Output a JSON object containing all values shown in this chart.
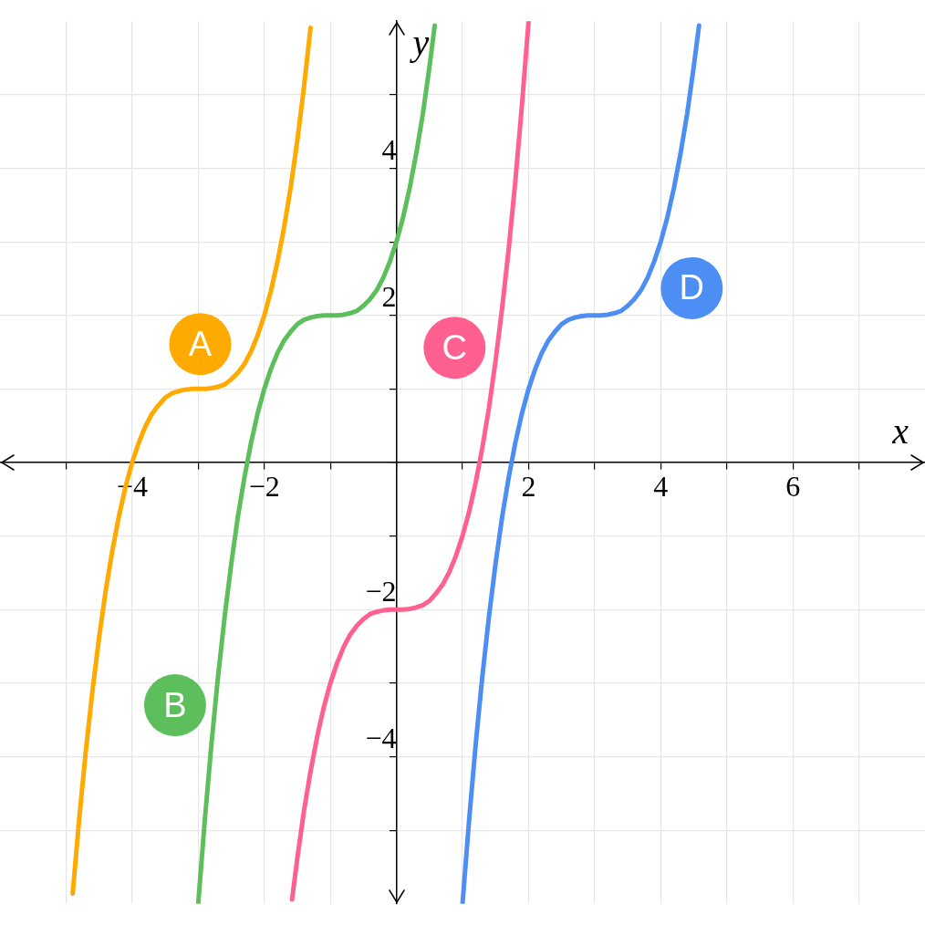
{
  "chart_data": {
    "type": "line",
    "xlabel": "x",
    "ylabel": "y",
    "xlim": [
      -6,
      8
    ],
    "ylim": [
      -6,
      6
    ],
    "xticks": [
      {
        "value": -5,
        "label": null
      },
      {
        "value": -4,
        "label": "−4"
      },
      {
        "value": -3,
        "label": null
      },
      {
        "value": -2,
        "label": "−2"
      },
      {
        "value": -1,
        "label": null
      },
      {
        "value": 0,
        "label": null
      },
      {
        "value": 1,
        "label": null
      },
      2,
      {
        "value": 3,
        "label": null
      },
      4,
      {
        "value": 5,
        "label": null
      },
      6,
      {
        "value": 7,
        "label": null
      }
    ],
    "yticks": [
      {
        "value": -5,
        "label": null
      },
      {
        "value": -4,
        "label": "−4"
      },
      {
        "value": -3,
        "label": null
      },
      {
        "value": -2,
        "label": "−2"
      },
      {
        "value": -1,
        "label": null
      },
      {
        "value": 0,
        "label": null
      },
      {
        "value": 1,
        "label": null
      },
      2,
      {
        "value": 3,
        "label": null
      },
      4,
      {
        "value": 5,
        "label": null
      }
    ],
    "grid": true,
    "legend": false,
    "marker": "none",
    "line_style": "solid",
    "annotations": [
      "A",
      "B",
      "C",
      "D"
    ],
    "series": [
      {
        "color": "#ffaa00",
        "x": [
          -4.9,
          -4.8,
          -4.7,
          -4.6,
          -4.5,
          -4.4,
          -4.3,
          -4.2,
          -4.1,
          -4.0,
          -3.9,
          -3.8,
          -3.7,
          -3.6,
          -3.5,
          -3.4,
          -3.3,
          -3.2,
          -3.1,
          -3.0,
          -2.9,
          -2.8,
          -2.7,
          -2.6,
          -2.5,
          -2.4,
          -2.3,
          -2.2,
          -2.1,
          -2.0,
          -1.9,
          -1.8,
          -1.7,
          -1.6,
          -1.5,
          -1.4,
          -1.3
        ],
        "values": [
          -5.86,
          -4.83,
          -3.91,
          -3.1,
          -2.38,
          -1.74,
          -1.2,
          -0.73,
          -0.33,
          0,
          0.27,
          0.49,
          0.66,
          0.78,
          0.88,
          0.94,
          0.97,
          0.99,
          1.0,
          1,
          1.0,
          1.01,
          1.03,
          1.06,
          1.13,
          1.22,
          1.34,
          1.51,
          1.73,
          2,
          2.33,
          2.73,
          3.2,
          3.74,
          4.38,
          5.1,
          5.91
        ]
      },
      {
        "color": "#5cbf5c",
        "x": [
          -3.0,
          -2.9,
          -2.8,
          -2.7,
          -2.6,
          -2.5,
          -2.4,
          -2.3,
          -2.2,
          -2.1,
          -2.0,
          -1.9,
          -1.8,
          -1.7,
          -1.6,
          -1.5,
          -1.4,
          -1.3,
          -1.2,
          -1.1,
          -1.0,
          -0.9,
          -0.8,
          -0.7,
          -0.6,
          -0.5,
          -0.4,
          -0.3,
          -0.2,
          -0.1,
          0.0,
          0.1,
          0.2,
          0.3,
          0.4,
          0.5,
          0.58
        ],
        "values": [
          -6,
          -4.86,
          -3.83,
          -2.91,
          -2.1,
          -1.38,
          -0.74,
          -0.2,
          0.27,
          0.67,
          1,
          1.27,
          1.49,
          1.66,
          1.78,
          1.88,
          1.94,
          1.97,
          1.99,
          2.0,
          2,
          2.0,
          2.01,
          2.03,
          2.06,
          2.13,
          2.22,
          2.34,
          2.51,
          2.73,
          3,
          3.33,
          3.73,
          4.2,
          4.74,
          5.38,
          5.94
        ]
      },
      {
        "color": "#ff6090",
        "x": [
          -1.58,
          -1.5,
          -1.4,
          -1.3,
          -1.2,
          -1.1,
          -1.0,
          -0.9,
          -0.8,
          -0.7,
          -0.6,
          -0.5,
          -0.4,
          -0.3,
          -0.2,
          -0.1,
          0.0,
          0.1,
          0.2,
          0.3,
          0.4,
          0.5,
          0.6,
          0.7,
          0.8,
          0.9,
          1.0,
          1.1,
          1.2,
          1.3,
          1.4,
          1.5,
          1.6,
          1.7,
          1.8,
          1.9,
          2.0
        ],
        "values": [
          -5.94,
          -5.38,
          -4.74,
          -4.2,
          -3.73,
          -3.33,
          -3,
          -2.73,
          -2.51,
          -2.34,
          -2.22,
          -2.13,
          -2.06,
          -2.03,
          -2.01,
          -2.0,
          -2,
          -2.0,
          -1.99,
          -1.97,
          -1.94,
          -1.88,
          -1.78,
          -1.66,
          -1.49,
          -1.27,
          -1,
          -0.67,
          -0.27,
          0.2,
          0.74,
          1.38,
          2.1,
          2.91,
          3.83,
          4.86,
          6
        ]
      },
      {
        "color": "#4d8ef5",
        "x": [
          1.0,
          1.1,
          1.2,
          1.3,
          1.4,
          1.5,
          1.6,
          1.7,
          1.8,
          1.9,
          2.0,
          2.1,
          2.2,
          2.3,
          2.4,
          2.5,
          2.6,
          2.7,
          2.8,
          2.9,
          3.0,
          3.1,
          3.2,
          3.3,
          3.4,
          3.5,
          3.6,
          3.7,
          3.8,
          3.9,
          4.0,
          4.1,
          4.2,
          4.3,
          4.4,
          4.5,
          4.58
        ],
        "values": [
          -6,
          -4.86,
          -3.83,
          -2.91,
          -2.1,
          -1.38,
          -0.74,
          -0.2,
          0.27,
          0.67,
          1,
          1.27,
          1.49,
          1.66,
          1.78,
          1.88,
          1.94,
          1.97,
          1.99,
          2.0,
          2,
          2.0,
          2.01,
          2.03,
          2.06,
          2.13,
          2.22,
          2.34,
          2.51,
          2.73,
          3,
          3.33,
          3.73,
          4.2,
          4.74,
          5.38,
          5.94
        ]
      }
    ]
  }
}
